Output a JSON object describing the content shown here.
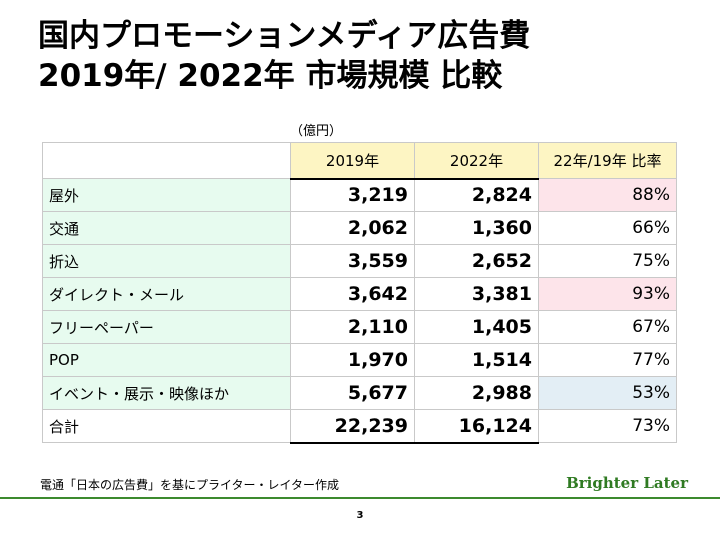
{
  "title": {
    "line1": "国内プロモーションメディア広告費",
    "line2": "2019年/ 2022年 市場規模 比較"
  },
  "unit_label": "（億円）",
  "table": {
    "headers": [
      "2019年",
      "2022年",
      "22年/19年 比率"
    ],
    "rows": [
      {
        "label": "屋外",
        "v2019": "3,219",
        "v2022": "2,824",
        "ratio": "88%",
        "highlight": "pink"
      },
      {
        "label": "交通",
        "v2019": "2,062",
        "v2022": "1,360",
        "ratio": "66%",
        "highlight": ""
      },
      {
        "label": "折込",
        "v2019": "3,559",
        "v2022": "2,652",
        "ratio": "75%",
        "highlight": ""
      },
      {
        "label": "ダイレクト・メール",
        "v2019": "3,642",
        "v2022": "3,381",
        "ratio": "93%",
        "highlight": "pink"
      },
      {
        "label": "フリーペーパー",
        "v2019": "2,110",
        "v2022": "1,405",
        "ratio": "67%",
        "highlight": ""
      },
      {
        "label": "POP",
        "v2019": "1,970",
        "v2022": "1,514",
        "ratio": "77%",
        "highlight": ""
      },
      {
        "label": "イベント・展示・映像ほか",
        "v2019": "5,677",
        "v2022": "2,988",
        "ratio": "53%",
        "highlight": "lightblue"
      }
    ],
    "total": {
      "label": "合計",
      "v2019": "22,239",
      "v2022": "16,124",
      "ratio": "73%"
    }
  },
  "source_note": "電通「日本の広告費」を基にプライター・レイター作成",
  "brand": "Brighter Later",
  "page_number": "3",
  "colors": {
    "row_label_bg": "#e7fbef",
    "header_bg": "#fdf5c3",
    "highlight_pink": "#fde4ea",
    "highlight_lightblue": "#e3eef5",
    "brand_green": "#2f7a22"
  }
}
